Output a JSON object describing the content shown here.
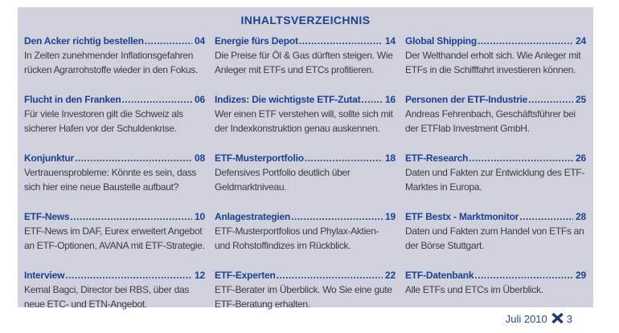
{
  "title": "INHALTSVERZEICHNIS",
  "colors": {
    "panel_bg": "#d1d1de",
    "heading_navy": "#1b4191",
    "body_text": "#3b3b44",
    "footer_blue": "#2a4a9b",
    "x_logo_navy": "#1e3672"
  },
  "columns": [
    {
      "entries": [
        {
          "title": "Den Acker richtig bestellen",
          "page": "04",
          "desc": "In Zeiten zunehmender Inflationsgefahren rücken Agrarrohstoffe wieder in den Fokus."
        },
        {
          "title": "Flucht in den Franken",
          "page": "06",
          "desc": "Für viele Investoren gilt die Schweiz als sicherer Hafen vor der Schuldenkrise."
        },
        {
          "title": "Konjunktur",
          "page": "08",
          "desc": "Vertrauensprobleme: Könnte es sein, dass sich hier eine neue Baustelle aufbaut?"
        },
        {
          "title": "ETF-News",
          "page": "10",
          "desc": "ETF-News im DAF, Eurex erweitert Angebot an ETF-Optionen, AVANA mit ETF-Strategie."
        },
        {
          "title": "Interview",
          "page": "12",
          "desc": "Kemal Bagci, Director bei RBS, über das neue ETC- und ETN-Angebot."
        }
      ]
    },
    {
      "entries": [
        {
          "title": "Energie fürs Depot",
          "page": "14",
          "desc": "Die Preise für Öl & Gas dürften steigen. Wie Anleger mit ETFs und ETCs profitieren."
        },
        {
          "title": "Indizes: Die wichtigste ETF-Zutat",
          "page": "16",
          "desc": "Wer einen ETF verstehen will, sollte sich mit der Indexkonstruktion genau auskennen."
        },
        {
          "title": "ETF-Musterportfolio",
          "page": "18",
          "desc": "Defensives Portfolio deutlich über Geldmarktniveau."
        },
        {
          "title": "Anlagestrategien",
          "page": "19",
          "desc": "ETF-Musterportfolios und Phylax-Aktien- und Rohstoffindizes im Rückblick."
        },
        {
          "title": "ETF-Experten",
          "page": "22",
          "desc": "ETF-Berater im Überblick. Wo Sie eine gute ETF-Beratung erhalten."
        }
      ]
    },
    {
      "entries": [
        {
          "title": "Global Shipping",
          "page": "24",
          "desc": "Der Welthandel erholt sich. Wie Anleger mit ETFs in die Schifffahrt investieren können."
        },
        {
          "title": "Personen der ETF-Industrie",
          "page": "25",
          "desc": "Andreas Fehrenbach, Geschäftsführer bei der ETFlab Investment GmbH."
        },
        {
          "title": "ETF-Research",
          "page": "26",
          "desc": "Daten und Fakten zur Entwicklung des ETF-Marktes in Europa."
        },
        {
          "title": "ETF Bestx - Marktmonitor",
          "page": "28",
          "desc": "Daten und Fakten zum Handel von ETFs an der Börse Stuttgart."
        },
        {
          "title": "ETF-Datenbank",
          "page": "29",
          "desc": "Alle ETFs und ETCs im Überblick."
        }
      ]
    }
  ],
  "footer": {
    "issue": "Juli 2010",
    "x_icon": "x-cross-logo",
    "page": "3"
  }
}
